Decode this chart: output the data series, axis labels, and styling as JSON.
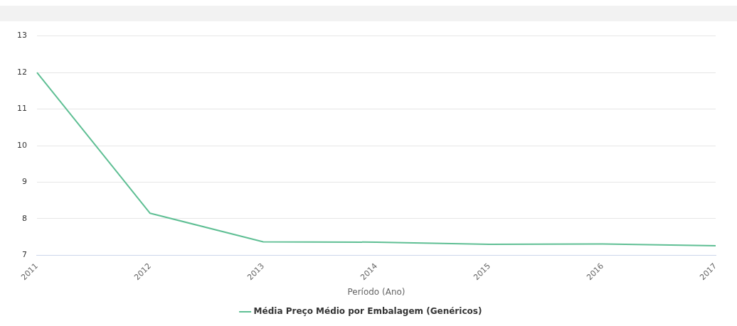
{
  "chart_data": {
    "type": "line",
    "xlabel": "Período (Ano)",
    "categories": [
      "2011",
      "2012",
      "2013",
      "2014",
      "2015",
      "2016",
      "2017"
    ],
    "series": [
      {
        "name": "Média Preço Médio por Embalagem (Genéricos)",
        "color": "#5fbf94",
        "values": [
          12.0,
          8.15,
          7.37,
          7.36,
          7.3,
          7.31,
          7.26
        ]
      }
    ],
    "ylim": [
      7,
      13
    ],
    "yticks": [
      7,
      8,
      9,
      10,
      11,
      12,
      13
    ],
    "grid": "y",
    "legend": "bottom",
    "marker": "none"
  }
}
